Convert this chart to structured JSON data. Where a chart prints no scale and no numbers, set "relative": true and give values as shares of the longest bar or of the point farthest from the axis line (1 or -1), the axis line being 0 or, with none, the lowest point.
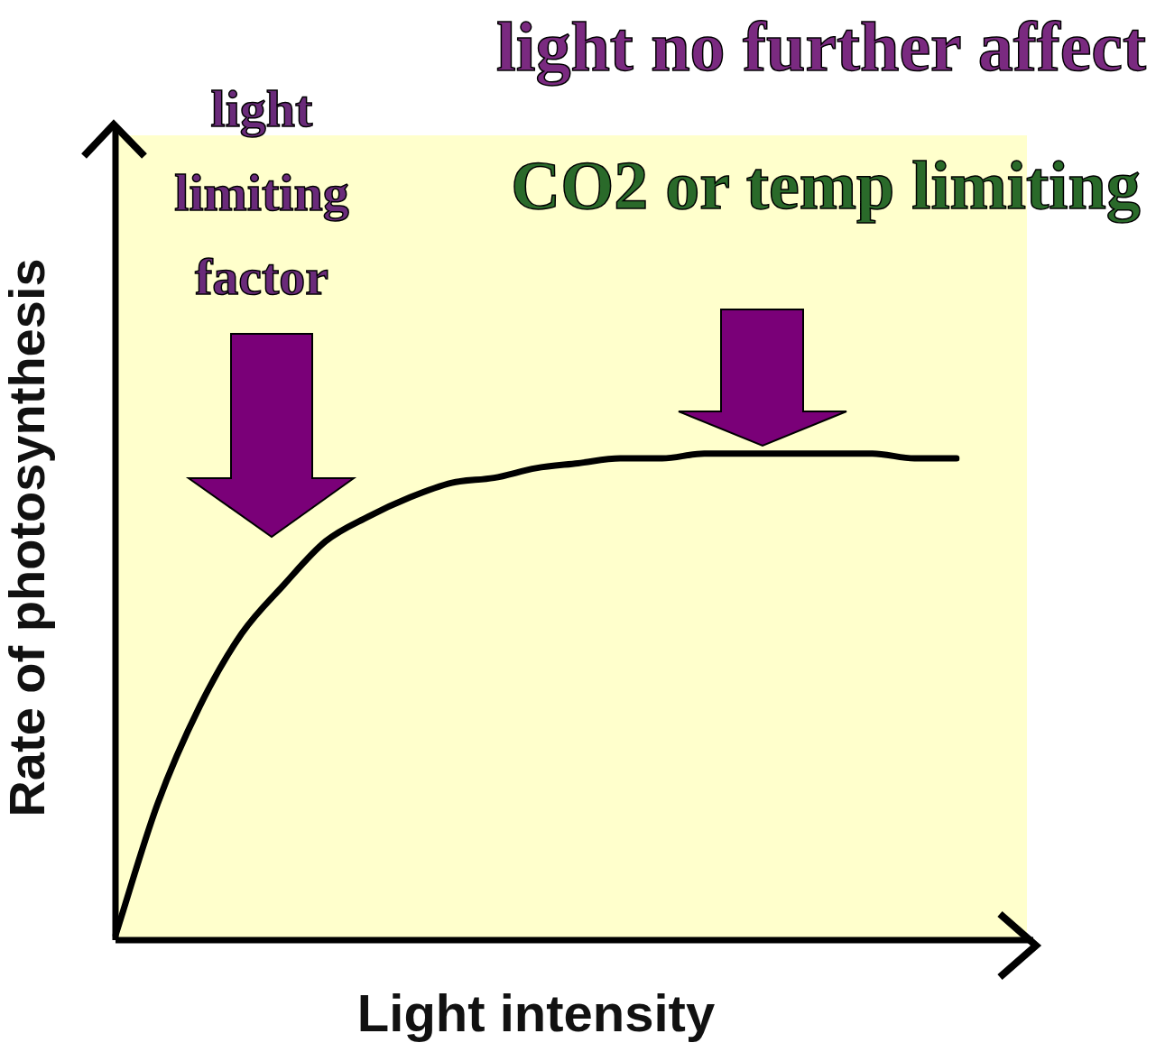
{
  "chart_data": {
    "type": "line",
    "relative": true,
    "xlabel": "Light intensity",
    "ylabel": "Rate of photosynthesis",
    "categories": [
      null,
      null,
      null,
      null,
      null,
      null,
      null,
      null,
      null,
      null,
      null,
      null,
      null,
      null,
      null,
      null,
      null,
      null,
      null,
      null,
      null
    ],
    "series": [
      {
        "color": "#000000",
        "values": [
          0.01,
          0.28,
          0.48,
          0.63,
          0.73,
          0.82,
          0.87,
          0.91,
          0.94,
          0.95,
          0.97,
          0.98,
          0.99,
          0.99,
          1,
          1,
          1,
          1,
          1,
          0.99,
          0.99
        ]
      }
    ],
    "marker": "none",
    "line_style": "solid",
    "grid": false,
    "legend": false,
    "annotations": [
      "light limiting factor",
      "light no further affect",
      "CO2 or temp limiting"
    ]
  }
}
